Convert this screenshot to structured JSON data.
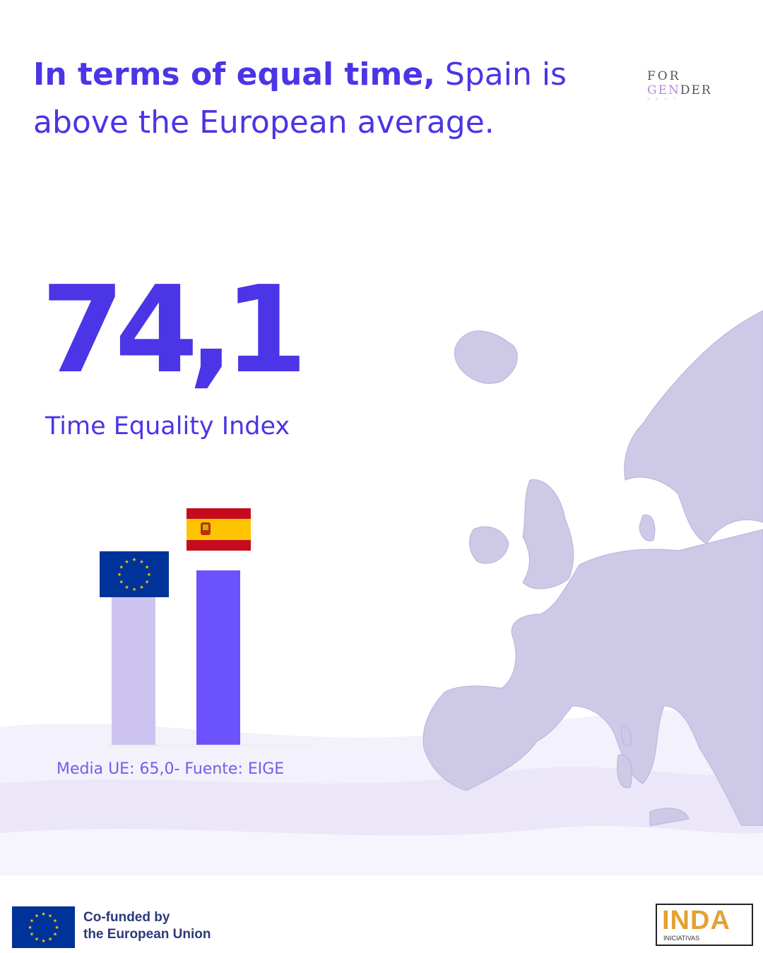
{
  "headline": {
    "bold": "In terms of equal time,",
    "regular": " Spain is above the European average."
  },
  "brand_logo": {
    "line1": "FOR",
    "line2a": "GEN",
    "line2b": "DER",
    "line3": "SEXY"
  },
  "headline_stat": {
    "value": "74,1",
    "label": "Time Equality Index"
  },
  "source_note": "Media UE: 65,0- Fuente: EIGE",
  "footer": {
    "cofunded_line1": "Co-funded by",
    "cofunded_line2": "the European Union",
    "partner_logo_big": "INDA",
    "partner_logo_small": "INICIATIVAS"
  },
  "colors": {
    "primary": "#4b35e6",
    "eu_bar": "#cdc3f0",
    "spain_bar": "#6c52fc",
    "map": "#cfc9e8",
    "eu_blue": "#003399",
    "eu_gold": "#ffcc00",
    "spain_red": "#c60b1e",
    "spain_yellow": "#ffc400"
  },
  "icons": [
    "eu-flag-icon",
    "spain-flag-icon",
    "europe-map"
  ],
  "chart_data": {
    "type": "bar",
    "categories": [
      "EU",
      "Spain"
    ],
    "values": [
      65.0,
      74.1
    ],
    "title": "",
    "xlabel": "",
    "ylabel": "",
    "ylim": [
      0,
      90
    ]
  }
}
